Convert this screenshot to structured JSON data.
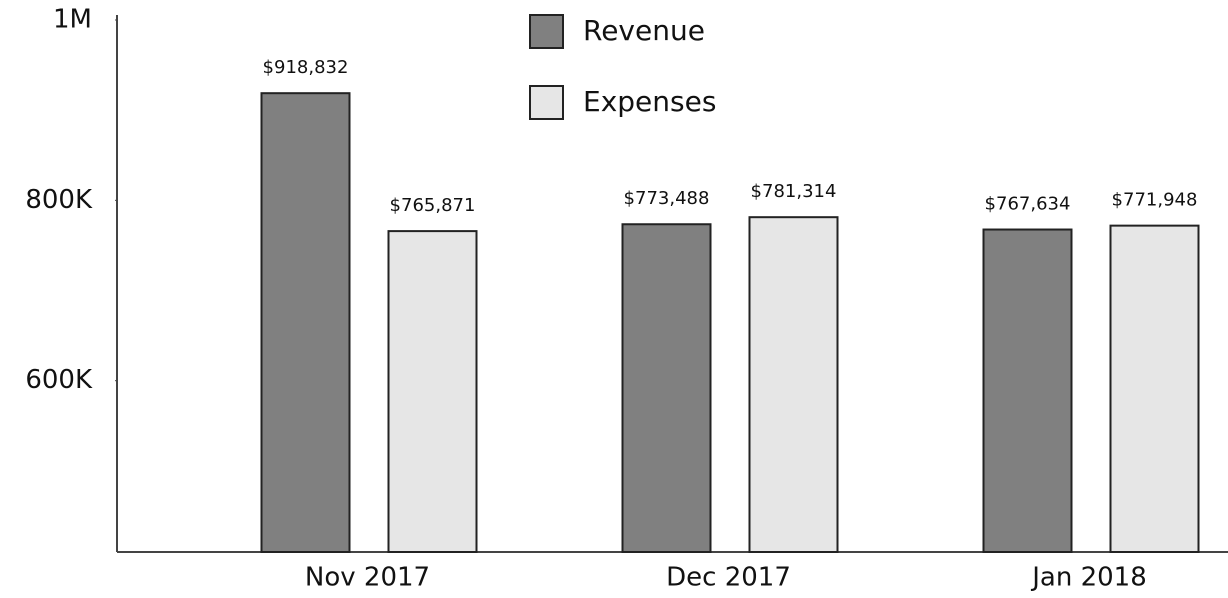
{
  "chart_data": {
    "type": "bar",
    "categories": [
      "Nov 2017",
      "Dec 2017",
      "Jan 2018"
    ],
    "series": [
      {
        "name": "Revenue",
        "color": "#808080",
        "values": [
          918832,
          773488,
          767634
        ],
        "value_labels": [
          "$918,832",
          "$773,488",
          "$767,634"
        ]
      },
      {
        "name": "Expenses",
        "color": "#e6e6e6",
        "values": [
          765871,
          781314,
          771948
        ],
        "value_labels": [
          "$765,871",
          "$781,314",
          "$771,948"
        ]
      }
    ],
    "ylim": [
      410000,
      1000000
    ],
    "yticks": [
      {
        "value": 600000,
        "label": "600K"
      },
      {
        "value": 800000,
        "label": "800K"
      },
      {
        "value": 1000000,
        "label": "1M"
      }
    ],
    "legend": "top"
  }
}
